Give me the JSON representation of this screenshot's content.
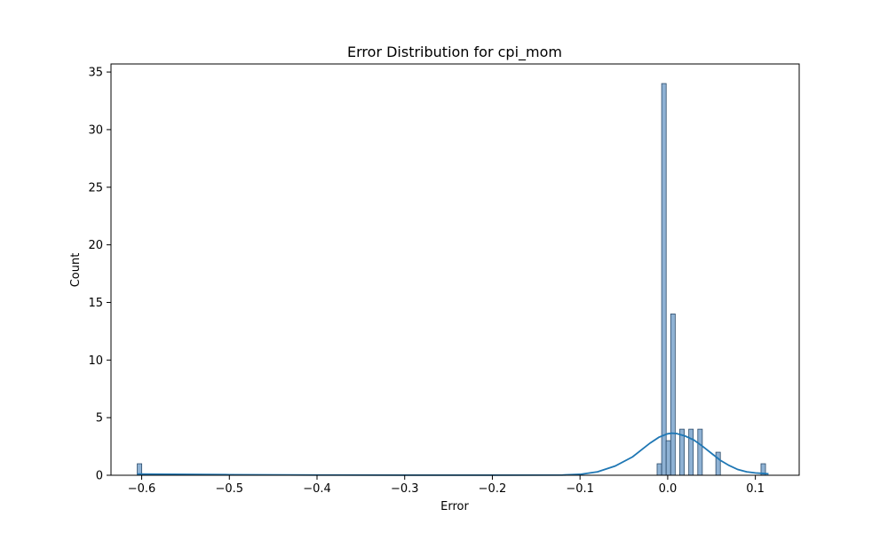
{
  "chart_data": {
    "type": "bar",
    "subtype": "histogram-with-kde",
    "title": "Error Distribution for cpi_mom",
    "xlabel": "Error",
    "ylabel": "Count",
    "xlim": [
      -0.635,
      0.15
    ],
    "ylim": [
      0,
      35.7
    ],
    "xticks": [
      -0.6,
      -0.5,
      -0.4,
      -0.3,
      -0.2,
      -0.1,
      0.0,
      0.1
    ],
    "xtick_labels": [
      "−0.6",
      "−0.5",
      "−0.4",
      "−0.3",
      "−0.2",
      "−0.1",
      "0.0",
      "0.1"
    ],
    "yticks": [
      0,
      5,
      10,
      15,
      20,
      25,
      30,
      35
    ],
    "ytick_labels": [
      "0",
      "5",
      "10",
      "15",
      "20",
      "25",
      "30",
      "35"
    ],
    "bin_width": 0.00515,
    "bins": [
      {
        "x": -0.6025,
        "count": 1
      },
      {
        "x": -0.0095,
        "count": 1
      },
      {
        "x": -0.0043,
        "count": 34
      },
      {
        "x": 0.0008,
        "count": 3
      },
      {
        "x": 0.006,
        "count": 14
      },
      {
        "x": 0.0163,
        "count": 4
      },
      {
        "x": 0.0266,
        "count": 4
      },
      {
        "x": 0.0369,
        "count": 4
      },
      {
        "x": 0.0575,
        "count": 2
      },
      {
        "x": 0.109,
        "count": 1
      }
    ],
    "kde": {
      "x": [
        -0.605,
        -0.5,
        -0.4,
        -0.3,
        -0.2,
        -0.12,
        -0.1,
        -0.08,
        -0.06,
        -0.04,
        -0.03,
        -0.02,
        -0.01,
        0.0,
        0.005,
        0.01,
        0.02,
        0.03,
        0.04,
        0.05,
        0.06,
        0.07,
        0.08,
        0.09,
        0.1,
        0.11,
        0.115
      ],
      "y": [
        0.1,
        0.05,
        0.02,
        0.01,
        0.01,
        0.02,
        0.08,
        0.3,
        0.8,
        1.6,
        2.2,
        2.8,
        3.3,
        3.6,
        3.65,
        3.62,
        3.4,
        3.05,
        2.5,
        1.9,
        1.3,
        0.85,
        0.5,
        0.3,
        0.2,
        0.15,
        0.12
      ]
    },
    "colors": {
      "bar_fill": "#8fb2d4",
      "bar_edge": "#2b4b6a",
      "kde_line": "#1f77b4"
    },
    "grid": false,
    "legend": "none"
  }
}
